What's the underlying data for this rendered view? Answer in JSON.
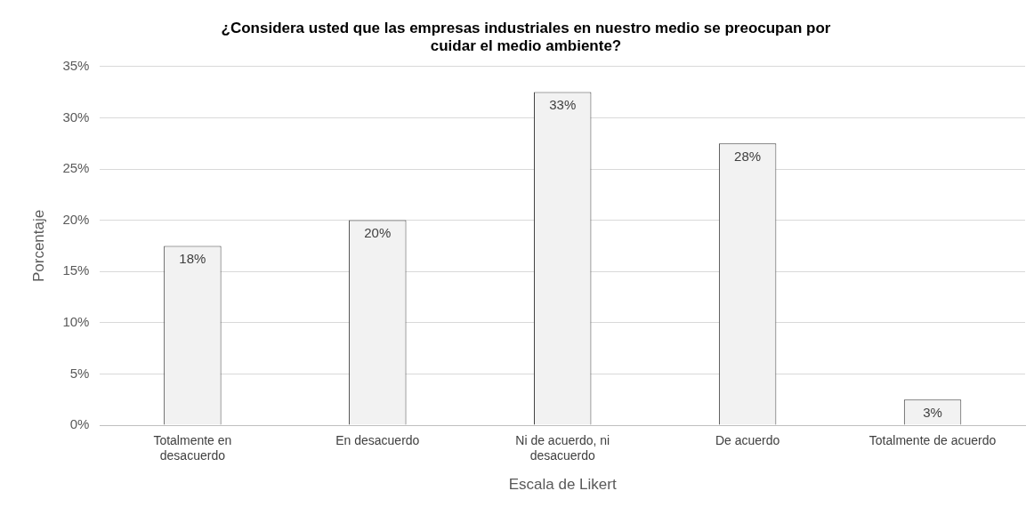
{
  "chart_data": {
    "type": "bar",
    "title": "¿Considera usted que las empresas industriales en nuestro medio se preocupan por cuidar el medio ambiente?",
    "xlabel": "Escala de Likert",
    "ylabel": "Porcentaje",
    "categories": [
      "Totalmente en desacuerdo",
      "En desacuerdo",
      "Ni de acuerdo, ni desacuerdo",
      "De acuerdo",
      "Totalmente de acuerdo"
    ],
    "values": [
      17.5,
      20,
      32.5,
      27.5,
      2.5
    ],
    "value_labels": [
      "18%",
      "20%",
      "33%",
      "28%",
      "3%"
    ],
    "color": "#f2f2f2",
    "ylim": [
      0,
      35
    ],
    "yticks": [
      {
        "value": 0,
        "label": "0%"
      },
      {
        "value": 5,
        "label": "5%"
      },
      {
        "value": 10,
        "label": "10%"
      },
      {
        "value": 15,
        "label": "15%"
      },
      {
        "value": 20,
        "label": "20%"
      },
      {
        "value": 25,
        "label": "25%"
      },
      {
        "value": 30,
        "label": "30%"
      },
      {
        "value": 35,
        "label": "35%"
      }
    ],
    "grid": "y",
    "legend": false
  }
}
